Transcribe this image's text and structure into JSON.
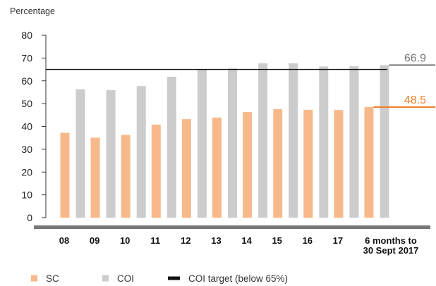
{
  "chart_data": {
    "type": "bar",
    "ylabel": "Percentage",
    "ylim": [
      0,
      80
    ],
    "yticks": [
      0,
      10,
      20,
      30,
      40,
      50,
      60,
      70,
      80
    ],
    "categories": [
      "08",
      "09",
      "10",
      "11",
      "12",
      "13",
      "14",
      "15",
      "16",
      "17",
      "6 months to 30 Sept 2017"
    ],
    "category_lines": [
      [
        "08"
      ],
      [
        "09"
      ],
      [
        "10"
      ],
      [
        "11"
      ],
      [
        "12"
      ],
      [
        "13"
      ],
      [
        "14"
      ],
      [
        "15"
      ],
      [
        "16"
      ],
      [
        "17"
      ],
      [
        "6 months to",
        "30 Sept 2017"
      ]
    ],
    "series": [
      {
        "name": "SC",
        "color": "#f8b98a",
        "values": [
          37.2,
          35.1,
          36.3,
          40.8,
          43.2,
          43.9,
          46.3,
          47.6,
          47.3,
          47.2,
          48.5
        ]
      },
      {
        "name": "COI",
        "color": "#cccccc",
        "values": [
          56.3,
          55.9,
          57.7,
          61.8,
          65.2,
          65.4,
          67.7,
          67.7,
          66.3,
          66.4,
          66.9
        ]
      }
    ],
    "reference_line": {
      "name": "COI target (below 65%)",
      "value": 65,
      "color": "#111111"
    },
    "end_labels": [
      {
        "text": "66.9",
        "value": 66.9,
        "color": "#777777"
      },
      {
        "text": "48.5",
        "value": 48.5,
        "color": "#f07d2b"
      }
    ],
    "legend_position": "bottom-left",
    "grid": false
  }
}
